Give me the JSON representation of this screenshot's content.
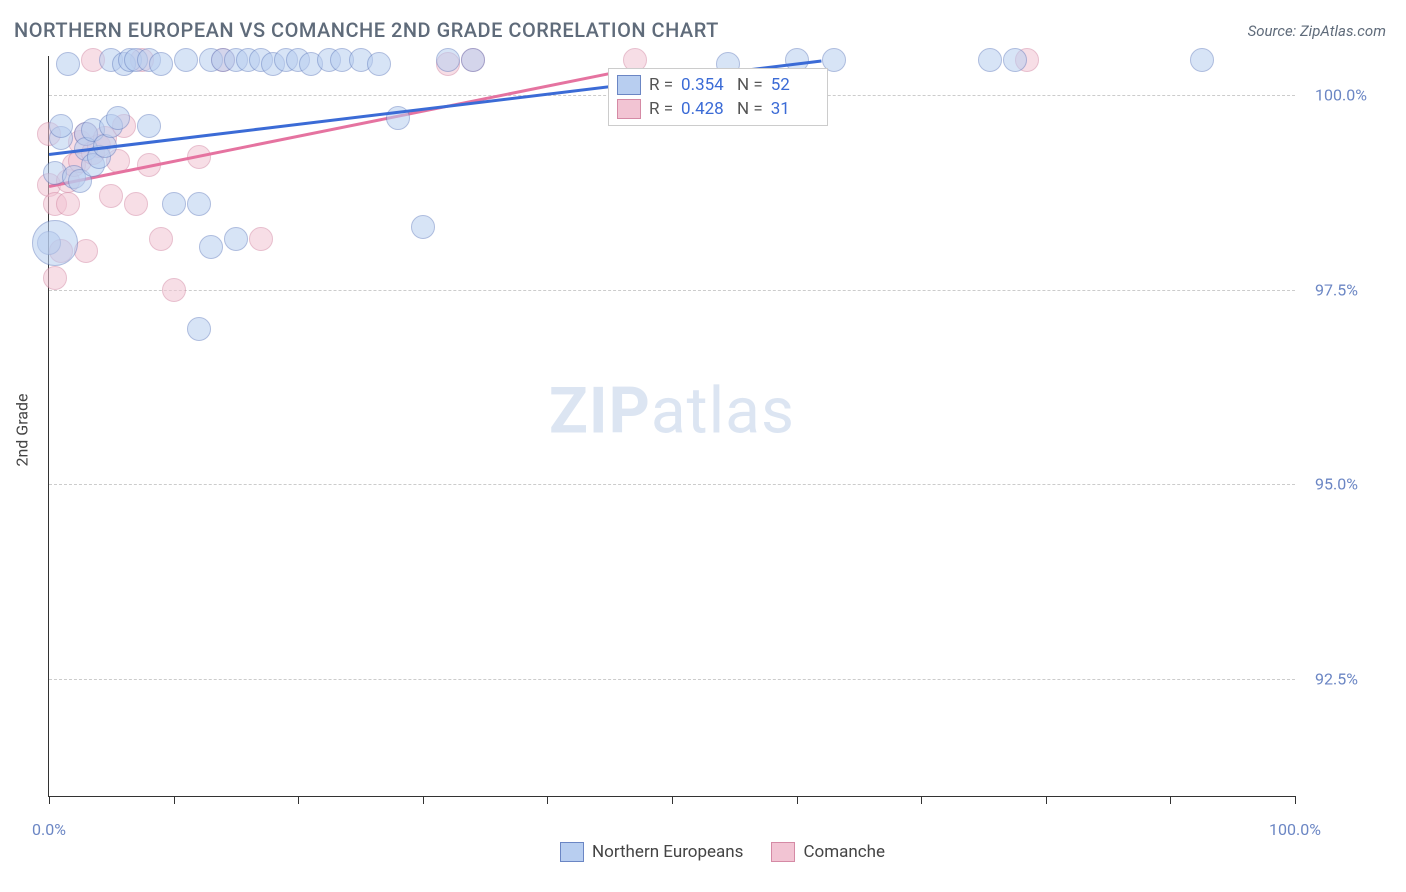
{
  "chart": {
    "type": "scatter",
    "title": "NORTHERN EUROPEAN VS COMANCHE 2ND GRADE CORRELATION CHART",
    "source": "Source: ZipAtlas.com",
    "watermark": {
      "strong": "ZIP",
      "light": "atlas"
    },
    "background_color": "#ffffff",
    "grid_color": "#cccccc",
    "axis_color": "#333333",
    "yaxis_title": "2nd Grade",
    "title_color": "#5f6b7a",
    "title_fontsize": 20,
    "tick_label_color": "#6b86c4",
    "tick_label_fontsize": 16,
    "xlim": [
      0,
      100
    ],
    "ylim": [
      91.0,
      100.5
    ],
    "xticks": [
      0,
      10,
      20,
      30,
      40,
      50,
      60,
      70,
      80,
      90,
      100
    ],
    "xtick_labels": {
      "0": "0.0%",
      "100": "100.0%"
    },
    "yticks": [
      92.5,
      95.0,
      97.5,
      100.0
    ],
    "ytick_labels": {
      "92.5": "92.5%",
      "95.0": "95.0%",
      "97.5": "97.5%",
      "100.0": "100.0%"
    },
    "marker_radius": 11,
    "marker_opacity": 0.55,
    "trend_width": 2.5
  },
  "series": {
    "a": {
      "label": "Northern Europeans",
      "fill": "#b8cef0",
      "stroke": "#6b86c4",
      "line_color": "#3b6bd6",
      "R": "0.354",
      "N": "52",
      "trend": {
        "x1": 0,
        "y1": 99.25,
        "x2": 62,
        "y2": 100.45
      },
      "points": [
        [
          0.0,
          98.1
        ],
        [
          0.5,
          98.1,
          22
        ],
        [
          0.5,
          99.0
        ],
        [
          1.0,
          99.45
        ],
        [
          1.0,
          99.6
        ],
        [
          1.5,
          100.4
        ],
        [
          2.0,
          98.95
        ],
        [
          2.5,
          98.9
        ],
        [
          3.0,
          99.5
        ],
        [
          3.0,
          99.3
        ],
        [
          3.5,
          99.55
        ],
        [
          3.5,
          99.1
        ],
        [
          4.0,
          99.2
        ],
        [
          4.5,
          99.35
        ],
        [
          5.0,
          100.45
        ],
        [
          5.0,
          99.6
        ],
        [
          5.5,
          99.7
        ],
        [
          6.0,
          100.4
        ],
        [
          6.5,
          100.45
        ],
        [
          7.0,
          100.45
        ],
        [
          8.0,
          99.6
        ],
        [
          8.0,
          100.45
        ],
        [
          9.0,
          100.4
        ],
        [
          10.0,
          98.6
        ],
        [
          11.0,
          100.45
        ],
        [
          12.0,
          98.6
        ],
        [
          12.0,
          97.0
        ],
        [
          13.0,
          100.45
        ],
        [
          13.0,
          98.05
        ],
        [
          14.0,
          100.45
        ],
        [
          15.0,
          100.45
        ],
        [
          15.0,
          98.15
        ],
        [
          16.0,
          100.45
        ],
        [
          17.0,
          100.45
        ],
        [
          18.0,
          100.4
        ],
        [
          19.0,
          100.45
        ],
        [
          20.0,
          100.45
        ],
        [
          21.0,
          100.4
        ],
        [
          22.5,
          100.45
        ],
        [
          23.5,
          100.45
        ],
        [
          25.0,
          100.45
        ],
        [
          26.5,
          100.4
        ],
        [
          28.0,
          99.7
        ],
        [
          30.0,
          98.3
        ],
        [
          32.0,
          100.45
        ],
        [
          34.0,
          100.45
        ],
        [
          54.5,
          100.4
        ],
        [
          60.0,
          100.45
        ],
        [
          63.0,
          100.45
        ],
        [
          75.5,
          100.45
        ],
        [
          77.5,
          100.45
        ],
        [
          92.5,
          100.45
        ]
      ]
    },
    "b": {
      "label": "Comanche",
      "fill": "#f2c4d3",
      "stroke": "#d58aa5",
      "line_color": "#e573a0",
      "R": "0.428",
      "N": "31",
      "trend": {
        "x1": 0,
        "y1": 98.85,
        "x2": 45,
        "y2": 100.3
      },
      "points": [
        [
          0.0,
          98.85
        ],
        [
          0.0,
          99.5
        ],
        [
          0.5,
          98.6
        ],
        [
          0.5,
          97.65
        ],
        [
          1.0,
          98.0
        ],
        [
          1.5,
          98.9
        ],
        [
          1.5,
          98.6
        ],
        [
          2.0,
          99.1
        ],
        [
          2.5,
          99.15
        ],
        [
          2.5,
          99.4
        ],
        [
          3.0,
          99.5
        ],
        [
          3.0,
          98.0
        ],
        [
          3.5,
          99.25
        ],
        [
          3.5,
          100.45
        ],
        [
          4.0,
          99.35
        ],
        [
          4.5,
          99.45
        ],
        [
          5.0,
          98.7
        ],
        [
          5.5,
          99.15
        ],
        [
          6.0,
          99.6
        ],
        [
          7.0,
          98.6
        ],
        [
          7.5,
          100.45
        ],
        [
          8.0,
          99.1
        ],
        [
          9.0,
          98.15
        ],
        [
          10.0,
          97.5
        ],
        [
          12.0,
          99.2
        ],
        [
          14.0,
          100.45
        ],
        [
          17.0,
          98.15
        ],
        [
          32.0,
          100.4
        ],
        [
          34.0,
          100.45
        ],
        [
          47.0,
          100.45
        ],
        [
          78.5,
          100.45
        ]
      ]
    }
  },
  "legend_stats": {
    "labels": {
      "R": "R =",
      "N": "N ="
    }
  },
  "legend_bottom_labels": {
    "a": "Northern Europeans",
    "b": "Comanche"
  }
}
